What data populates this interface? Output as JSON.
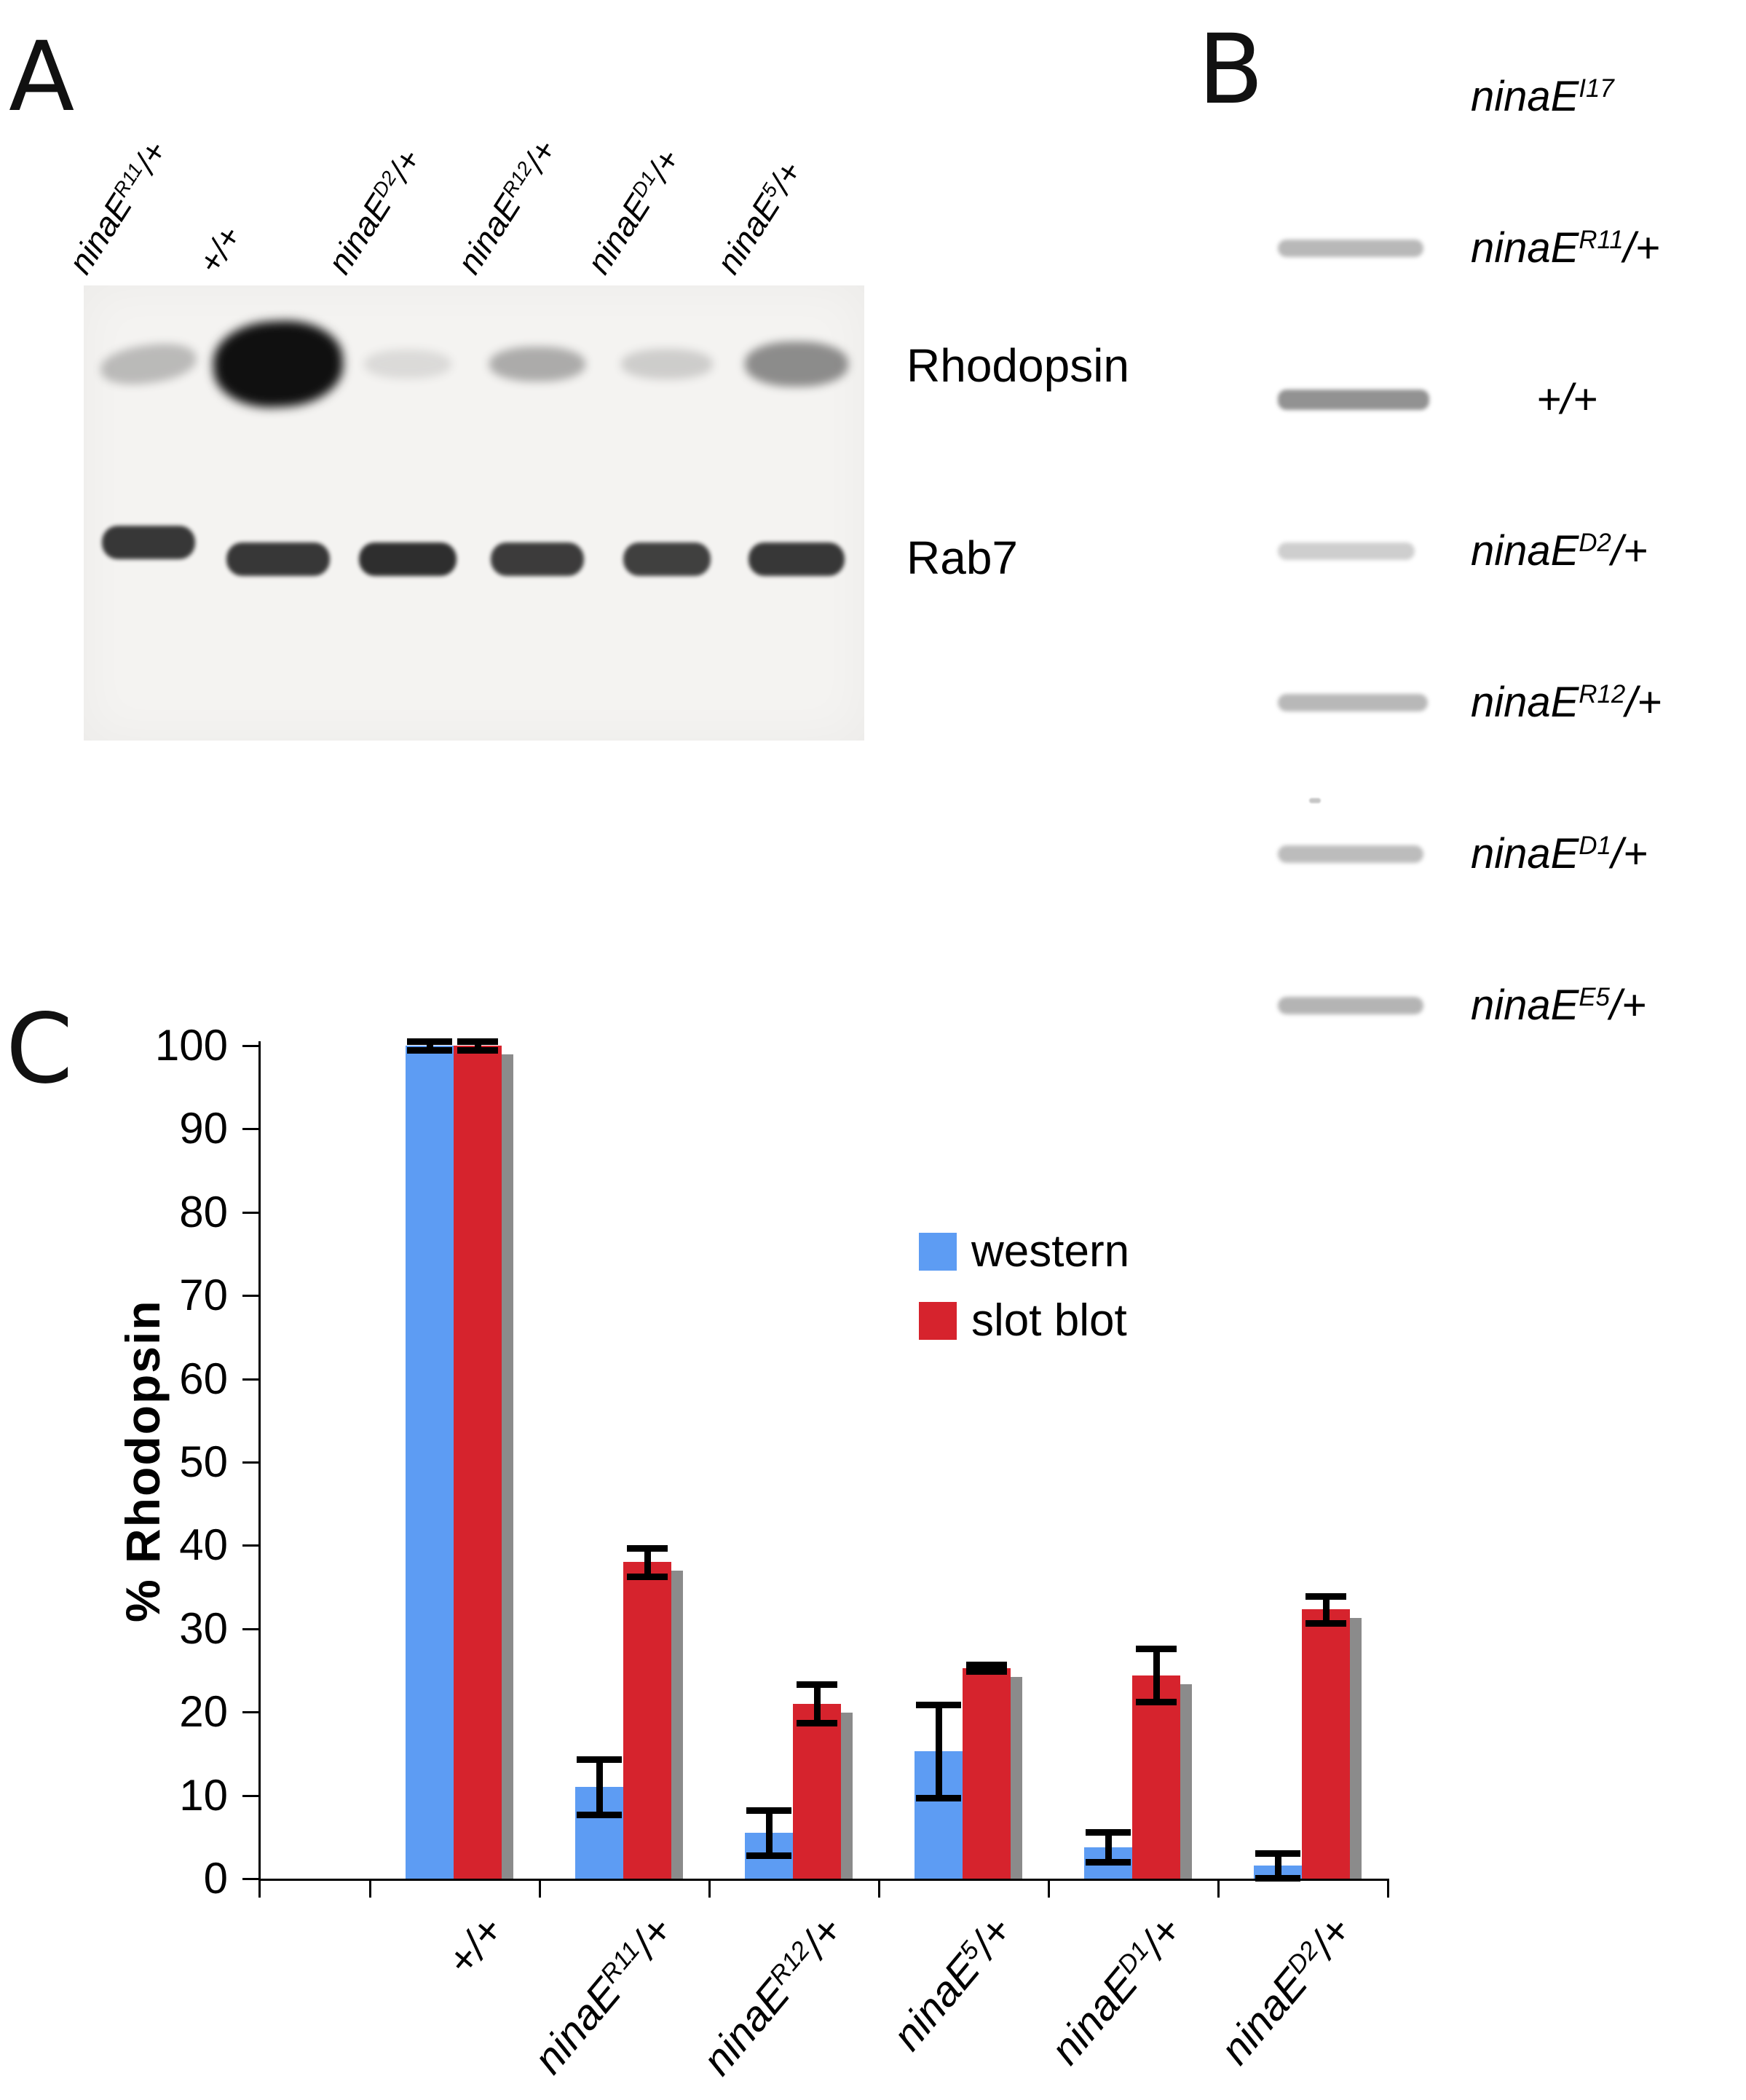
{
  "panel_a": {
    "label": "A",
    "lane_labels": [
      "ninaE^R11/+",
      "+/+",
      "ninaE^D2/+",
      "ninaE^R12/+",
      "ninaE^D1/+",
      "ninaE^5/+"
    ],
    "row_labels": [
      "Rhodopsin",
      "Rab7"
    ],
    "rhodopsin_band_intensity": [
      0.3,
      1.0,
      0.13,
      0.38,
      0.2,
      0.55
    ],
    "rab7_band_intensity": [
      0.88,
      0.88,
      0.92,
      0.86,
      0.84,
      0.88
    ]
  },
  "panel_b": {
    "label": "B",
    "rows": [
      {
        "label": "ninaE^I17",
        "band_intensity": 0
      },
      {
        "label": "ninaE^R11/+",
        "band_intensity": 0.55
      },
      {
        "label": "+/+",
        "band_intensity": 0.85
      },
      {
        "label": "ninaE^D2/+",
        "band_intensity": 0.38
      },
      {
        "label": "ninaE^R12/+",
        "band_intensity": 0.55
      },
      {
        "label": "ninaE^D1/+",
        "band_intensity": 0.52
      },
      {
        "label": "ninaE^E5/+",
        "band_intensity": 0.58
      }
    ]
  },
  "chart_data": {
    "type": "bar",
    "panel_label": "C",
    "title": "",
    "xlabel": "",
    "ylabel": "% Rhodopsin",
    "ylim": [
      0,
      100
    ],
    "ytick_interval": 10,
    "grid": false,
    "legend_position": "center-right",
    "categories": [
      "+/+",
      "ninaE^R11/+",
      "ninaE^R12/+",
      "ninaE^5/+",
      "ninaE^D1/+",
      "ninaE^D2/+"
    ],
    "series": [
      {
        "name": "western",
        "color": "#5d9cf3",
        "values": [
          100,
          11,
          5.5,
          15.3,
          3.8,
          1.6
        ],
        "errors": [
          0.5,
          3.3,
          2.7,
          5.6,
          1.8,
          1.5
        ]
      },
      {
        "name": "slot blot",
        "color": "#d6232d",
        "values": [
          100,
          38,
          21,
          25.3,
          24.4,
          32.3
        ],
        "errors": [
          0.5,
          1.7,
          2.3,
          0.4,
          3.2,
          1.6
        ]
      }
    ],
    "shadow_color": "#8b8b8b",
    "error_bar_color": "#000000"
  }
}
